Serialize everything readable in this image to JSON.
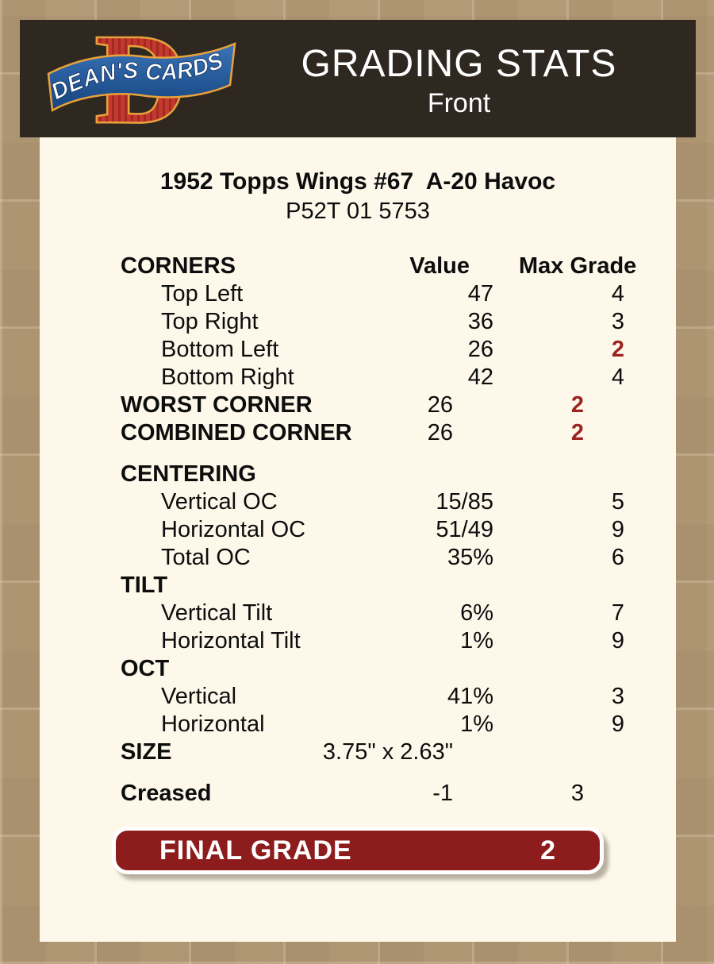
{
  "header": {
    "title": "GRADING STATS",
    "side": "Front",
    "logo_text": "DEAN'S CARDS"
  },
  "card": {
    "title": "1952 Topps Wings #67  A-20 Havoc",
    "code": "P52T 01 5753"
  },
  "table": {
    "rows": [
      {
        "label": "CORNERS",
        "value": "Value",
        "max": "Max Grade",
        "header": true
      },
      {
        "label": "Top Left",
        "value": "47",
        "max": "4",
        "indent": true
      },
      {
        "label": "Top Right",
        "value": "36",
        "max": "3",
        "indent": true
      },
      {
        "label": "Bottom Left",
        "value": "26",
        "max": "2",
        "indent": true,
        "red": true
      },
      {
        "label": "Bottom Right",
        "value": "42",
        "max": "4",
        "indent": true
      },
      {
        "label": "WORST CORNER",
        "value": "26",
        "max": "2",
        "bold": true,
        "red": true
      },
      {
        "label": "COMBINED CORNER",
        "value": "26",
        "max": "2",
        "bold": true,
        "red": true
      },
      {
        "label": "CENTERING",
        "value": "",
        "max": "",
        "bold": true,
        "gap": true
      },
      {
        "label": "Vertical OC",
        "value": "15/85",
        "max": "5",
        "indent": true
      },
      {
        "label": "Horizontal OC",
        "value": "51/49",
        "max": "9",
        "indent": true
      },
      {
        "label": "Total OC",
        "value": "35%",
        "max": "6",
        "indent": true
      },
      {
        "label": "TILT",
        "value": "",
        "max": "",
        "bold": true
      },
      {
        "label": "Vertical Tilt",
        "value": "6%",
        "max": "7",
        "indent": true
      },
      {
        "label": "Horizontal Tilt",
        "value": "1%",
        "max": "9",
        "indent": true
      },
      {
        "label": "OCT",
        "value": "",
        "max": "",
        "bold": true
      },
      {
        "label": "Vertical",
        "value": "41%",
        "max": "3",
        "indent": true
      },
      {
        "label": "Horizontal",
        "value": "1%",
        "max": "9",
        "indent": true
      },
      {
        "label": "SIZE",
        "value": "3.75\" x 2.63\"",
        "max": "",
        "bold": true
      },
      {
        "label": "Creased",
        "value": "-1",
        "max": "3",
        "bold": true,
        "gap": true
      }
    ]
  },
  "final": {
    "label": "FINAL GRADE",
    "value": "2"
  },
  "colors": {
    "background_tan": "#b39b77",
    "panel_cream": "#fdf8ea",
    "header_dark": "#2f2821",
    "grade_red": "#9b2320",
    "final_button_maroon": "#8d1d1d",
    "logo_red": "#c5382e",
    "logo_blue": "#1c4d92",
    "logo_gold": "#e9a23b"
  }
}
